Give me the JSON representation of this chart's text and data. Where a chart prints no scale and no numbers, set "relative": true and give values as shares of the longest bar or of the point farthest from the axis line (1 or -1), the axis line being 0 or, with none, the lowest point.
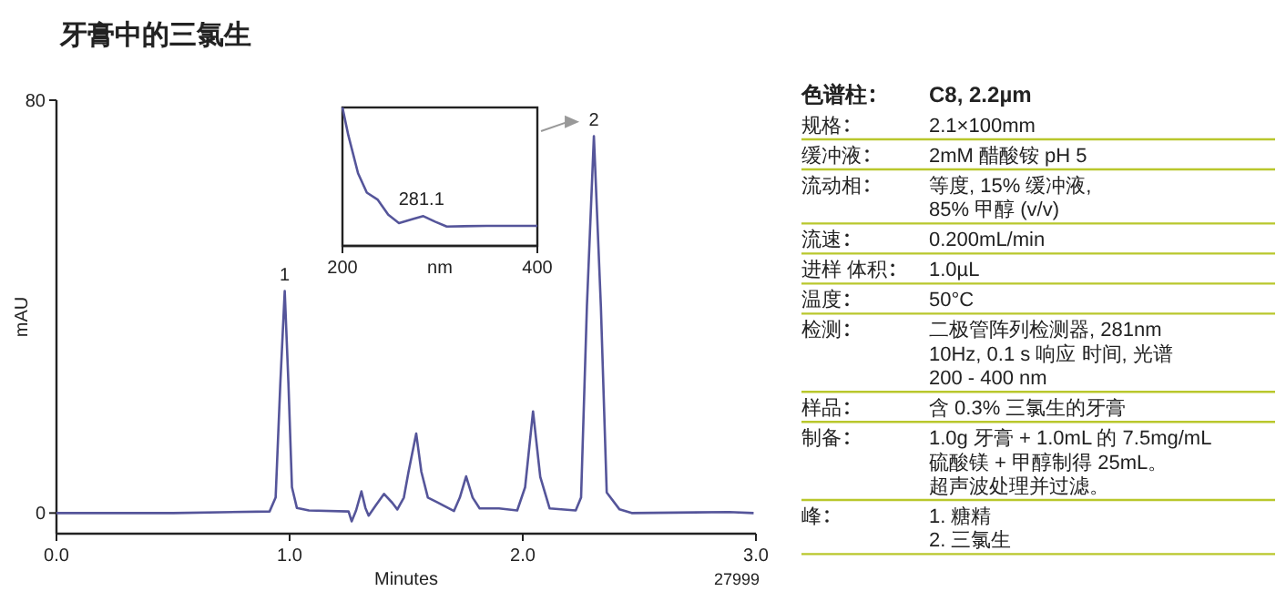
{
  "chart_data": [
    {
      "type": "line",
      "title": "牙膏中的三氯生",
      "xlabel": "Minutes",
      "ylabel": "mAU",
      "color": "#55559a",
      "x": [
        0,
        0.5,
        0.914,
        0.94,
        0.96,
        0.979,
        0.995,
        1.01,
        1.031,
        1.083,
        1.253,
        1.266,
        1.285,
        1.308,
        1.325,
        1.339,
        1.37,
        1.405,
        1.44,
        1.462,
        1.49,
        1.51,
        1.543,
        1.565,
        1.593,
        1.632,
        1.705,
        1.73,
        1.757,
        1.785,
        1.815,
        1.898,
        1.976,
        2.01,
        2.044,
        2.075,
        2.115,
        2.227,
        2.25,
        2.275,
        2.305,
        2.335,
        2.36,
        2.415,
        2.467,
        2.885,
        2.99
      ],
      "values": [
        0,
        0,
        0.3,
        3,
        25,
        43,
        25,
        5,
        1,
        0.5,
        0.3,
        -1.6,
        0.5,
        4.2,
        1,
        -0.5,
        1.5,
        3.7,
        2,
        0.7,
        3,
        8,
        15.4,
        8,
        3,
        2.1,
        0.4,
        3,
        7.1,
        3,
        0.9,
        0.9,
        0.5,
        5,
        19.7,
        7,
        0.9,
        0.5,
        3,
        40,
        73,
        40,
        4,
        0.7,
        0,
        0.2,
        0
      ],
      "xlim": [
        0,
        3
      ],
      "xticks": [
        {
          "value": 0,
          "label": "0.0"
        },
        {
          "value": 1,
          "label": "1.0"
        },
        {
          "value": 2,
          "label": "2.0"
        },
        {
          "value": 3,
          "label": "3.0"
        }
      ],
      "ylim": [
        -4,
        80
      ],
      "yticks": [
        0,
        80
      ],
      "annotations": [
        {
          "text": "1",
          "x": 0.979,
          "y": 43
        },
        {
          "text": "2",
          "x": 2.305,
          "y": 73
        },
        "27999"
      ]
    },
    {
      "type": "line",
      "relative": true,
      "xlabel": "nm",
      "color": "#55559a",
      "x": [
        200,
        206,
        216,
        225,
        236,
        247,
        258,
        273,
        283,
        295,
        307,
        348,
        400
      ],
      "values": [
        1.0,
        0.8,
        0.525,
        0.385,
        0.335,
        0.225,
        0.165,
        0.195,
        0.215,
        0.175,
        0.14,
        0.145,
        0.145
      ],
      "xlim": [
        200,
        400
      ],
      "xticks": [
        200,
        400
      ],
      "annotations": [
        {
          "text": "281.1",
          "x": 281.1,
          "y": 0.215
        }
      ]
    },
    {
      "type": "other",
      "categories": [
        "色谱柱",
        "规格",
        "缓冲液",
        "流动相",
        "流速",
        "进样 体积",
        "温度",
        "检测",
        "样品",
        "制备",
        "峰"
      ],
      "annotations": [
        "C8, 2.2µm",
        "2.1×100mm",
        "2mM 醋酸铵 pH 5",
        "等度, 15% 缓冲液,\n85% 甲醇 (v/v)",
        "0.200mL/min",
        "1.0µL",
        "50°C",
        "二极管阵列检测器, 281nm\n10Hz, 0.1 s 响应 时间, 光谱\n200 - 400 nm",
        "含 0.3% 三氯生的牙膏",
        "1.0g 牙膏 + 1.0mL 的 7.5mg/mL\n硫酸镁 + 甲醇制得 25mL。超声波处理并过滤。",
        "1. 糖精\n2. 三氯生"
      ]
    }
  ]
}
